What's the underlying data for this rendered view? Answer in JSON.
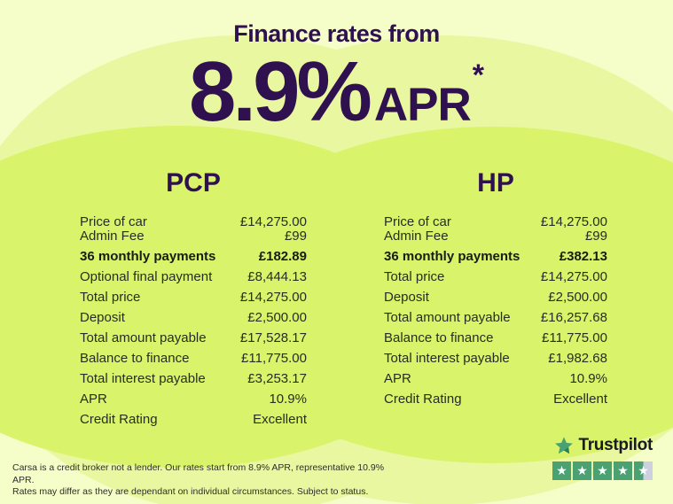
{
  "header": {
    "title": "Finance rates from",
    "rate": "8.9%",
    "rate_suffix": "APR",
    "asterisk": "*"
  },
  "pcp": {
    "title": "PCP",
    "rows": [
      {
        "label": "Price of car",
        "value": "£14,275.00",
        "tight": true
      },
      {
        "label": "Admin Fee",
        "value": "£99"
      },
      {
        "label": "36 monthly payments",
        "value": "£182.89",
        "bold": true
      },
      {
        "label": "Optional final payment",
        "value": "£8,444.13"
      },
      {
        "label": "Total price",
        "value": "£14,275.00"
      },
      {
        "label": "Deposit",
        "value": "£2,500.00"
      },
      {
        "label": "Total amount payable",
        "value": "£17,528.17"
      },
      {
        "label": "Balance to finance",
        "value": "£11,775.00"
      },
      {
        "label": "Total interest payable",
        "value": "£3,253.17"
      },
      {
        "label": "APR",
        "value": "10.9%"
      },
      {
        "label": "Credit Rating",
        "value": "Excellent"
      }
    ]
  },
  "hp": {
    "title": "HP",
    "rows": [
      {
        "label": "Price of car",
        "value": "£14,275.00",
        "tight": true
      },
      {
        "label": "Admin Fee",
        "value": "£99"
      },
      {
        "label": "36 monthly payments",
        "value": "£382.13",
        "bold": true
      },
      {
        "label": "Total price",
        "value": "£14,275.00"
      },
      {
        "label": "Deposit",
        "value": "£2,500.00"
      },
      {
        "label": "Total amount payable",
        "value": "£16,257.68"
      },
      {
        "label": "Balance to finance",
        "value": "£11,775.00"
      },
      {
        "label": "Total interest payable",
        "value": "£1,982.68"
      },
      {
        "label": "APR",
        "value": "10.9%"
      },
      {
        "label": "Credit Rating",
        "value": "Excellent"
      }
    ]
  },
  "disclaimer": {
    "line1": "Carsa is a credit broker not a lender. Our rates start from 8.9% APR, representative 10.9% APR.",
    "line2": "Rates may differ as they are dependant on individual circumstances. Subject to status."
  },
  "trustpilot": {
    "brand": "Trustpilot",
    "rating": 4.5,
    "star_count": 5
  },
  "colors": {
    "background": "#f5fdc8",
    "blob_light": "#e9f7a0",
    "blob_bright": "#d9f46b",
    "heading_purple": "#2f1150",
    "body_text": "#272d22",
    "trustpilot_green": "#4aa171",
    "trustpilot_green_dark": "#2e7e55",
    "star_empty": "#ccd0df",
    "trustpilot_text": "#191922"
  }
}
